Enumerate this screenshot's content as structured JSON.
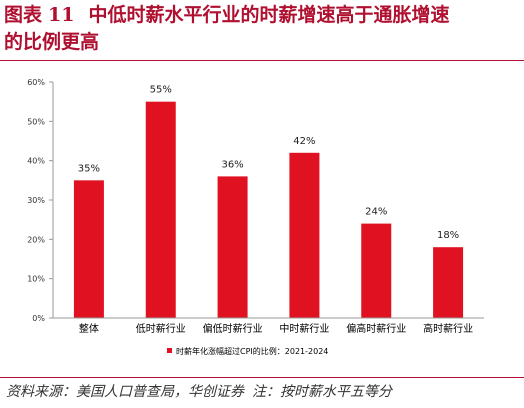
{
  "header": {
    "prefix": "图表",
    "number": "11",
    "title_line1": "中低时薪水平行业的时薪增速高于通胀增速",
    "title_line2": "的比例更高"
  },
  "footer": {
    "source": "资料来源：美国人口普查局，华创证券",
    "note": "注：按时薪水平五等分"
  },
  "chart_data": {
    "type": "bar",
    "categories": [
      "整体",
      "低时薪行业",
      "偏低时薪行业",
      "中时薪行业",
      "偏高时薪行业",
      "高时薪行业"
    ],
    "series": [
      {
        "name": "时薪年化涨幅超过CPI的比例：2021-2024",
        "values": [
          35,
          55,
          36,
          42,
          24,
          18
        ],
        "labels": [
          "35%",
          "55%",
          "36%",
          "42%",
          "24%",
          "18%"
        ]
      }
    ],
    "ylim": [
      0,
      60
    ],
    "yticks": [
      "0%",
      "10%",
      "20%",
      "30%",
      "40%",
      "50%",
      "60%"
    ],
    "grid": false,
    "legend_position": "bottom",
    "colors": {
      "bar": "#e01221",
      "title": "#b01030"
    }
  }
}
